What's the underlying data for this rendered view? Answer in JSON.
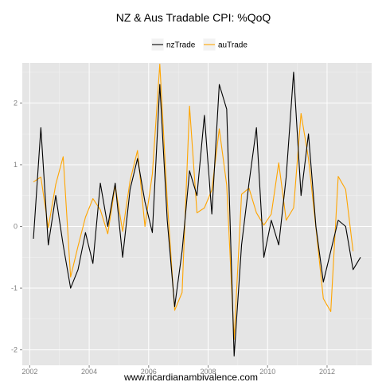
{
  "chart_data": {
    "type": "line",
    "title": "NZ & Aus Tradable CPI: %QoQ",
    "xlabel": "",
    "ylabel": "",
    "xlim": [
      2001.75,
      2013.5
    ],
    "ylim": [
      -2.25,
      2.65
    ],
    "x_ticks": [
      2002,
      2004,
      2006,
      2008,
      2010,
      2012
    ],
    "y_ticks": [
      -2,
      -1,
      0,
      1,
      2
    ],
    "grid": true,
    "legend_position": "top",
    "x": [
      2002.125,
      2002.375,
      2002.625,
      2002.875,
      2003.125,
      2003.375,
      2003.625,
      2003.875,
      2004.125,
      2004.375,
      2004.625,
      2004.875,
      2005.125,
      2005.375,
      2005.625,
      2005.875,
      2006.125,
      2006.375,
      2006.625,
      2006.875,
      2007.125,
      2007.375,
      2007.625,
      2007.875,
      2008.125,
      2008.375,
      2008.625,
      2008.875,
      2009.125,
      2009.375,
      2009.625,
      2009.875,
      2010.125,
      2010.375,
      2010.625,
      2010.875,
      2011.125,
      2011.375,
      2011.625,
      2011.875,
      2012.125,
      2012.375,
      2012.625,
      2012.875,
      2013.125
    ],
    "series": [
      {
        "name": "nzTrade",
        "color": "#000000",
        "values": [
          -0.2,
          1.6,
          -0.3,
          0.5,
          -0.3,
          -1.0,
          -0.7,
          -0.1,
          -0.6,
          0.7,
          0.0,
          0.7,
          -0.5,
          0.6,
          1.1,
          0.4,
          -0.1,
          2.3,
          0.1,
          -1.3,
          -0.4,
          0.9,
          0.5,
          1.8,
          0.2,
          2.3,
          1.9,
          -2.1,
          -0.3,
          0.7,
          1.6,
          -0.5,
          0.1,
          -0.3,
          0.8,
          2.5,
          0.5,
          1.5,
          0.0,
          -0.9,
          -0.4,
          0.1,
          0.0,
          -0.7,
          -0.5
        ]
      },
      {
        "name": "auTrade",
        "color": "#ffa500",
        "values": [
          0.72,
          0.8,
          -0.02,
          0.68,
          1.13,
          -0.82,
          -0.32,
          0.15,
          0.45,
          0.27,
          -0.12,
          0.66,
          -0.08,
          0.74,
          1.23,
          0.0,
          0.85,
          2.63,
          0.42,
          -1.36,
          -1.07,
          1.95,
          0.22,
          0.3,
          0.59,
          1.58,
          0.67,
          -1.83,
          0.52,
          0.62,
          0.22,
          0.02,
          0.2,
          1.03,
          0.1,
          0.3,
          1.83,
          1.1,
          -0.02,
          -1.17,
          -1.38,
          0.81,
          0.6,
          -0.4,
          null
        ]
      }
    ]
  },
  "caption": "www.ricardianambivalence.com",
  "colors": {
    "panel_background": "#e5e5e5",
    "grid_major": "#ffffff",
    "grid_minor": "#f2f2f2",
    "tick_label": "#7f7f7f"
  }
}
